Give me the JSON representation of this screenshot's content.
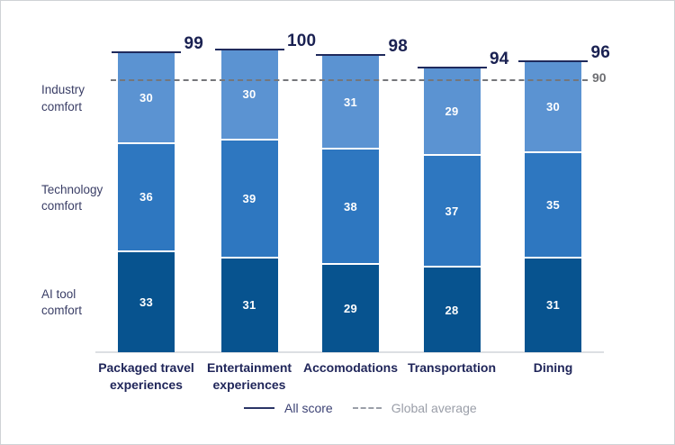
{
  "chart_data": {
    "type": "bar",
    "stacked": true,
    "categories": [
      "Packaged travel\nexperiences",
      "Entertainment\nexperiences",
      "Accomodations",
      "Transportation",
      "Dining"
    ],
    "series": [
      {
        "name": "AI tool comfort",
        "values": [
          33,
          31,
          29,
          28,
          31
        ]
      },
      {
        "name": "Technology comfort",
        "values": [
          36,
          39,
          38,
          37,
          35
        ]
      },
      {
        "name": "Industry comfort",
        "values": [
          30,
          30,
          31,
          29,
          30
        ]
      }
    ],
    "totals": [
      99,
      100,
      98,
      94,
      96
    ],
    "global_average": 90,
    "row_labels": [
      "Industry\ncomfort",
      "Technology\ncomfort",
      "AI tool\ncomfort"
    ],
    "legend": {
      "all_score": "All score",
      "global_average": "Global average"
    },
    "colors": {
      "segments": [
        "#07538f",
        "#2e77c0",
        "#5b93d2"
      ],
      "total_line": "#1f2a5c",
      "total_text": "#1a2152",
      "category_text": "#20265a",
      "dashed_line": "#75767a",
      "dash_label_text": "#6e6f73"
    },
    "layout": {
      "grid": false,
      "legend_position": "bottom",
      "value_labels": "inside-white"
    }
  }
}
